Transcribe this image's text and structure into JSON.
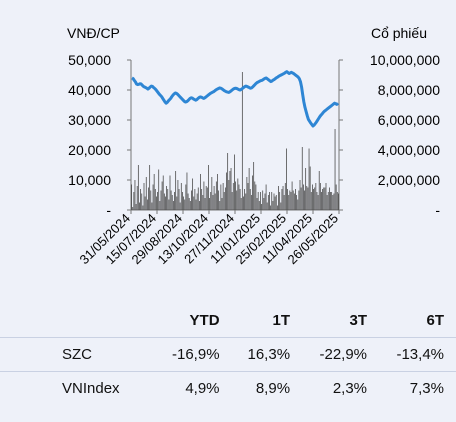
{
  "chart_data": {
    "type": "bar+line",
    "left_axis_title": "VNĐ/CP",
    "right_axis_title": "Cổ phiếu",
    "left_ticks": [
      "-",
      "10,000",
      "20,000",
      "30,000",
      "40,000",
      "50,000"
    ],
    "right_ticks": [
      "-",
      "2,000,000",
      "4,000,000",
      "6,000,000",
      "8,000,000",
      "10,000,000"
    ],
    "x_tick_labels": [
      "31/05/2024",
      "15/07/2024",
      "29/08/2024",
      "13/10/2024",
      "27/11/2024",
      "11/01/2025",
      "25/02/2025",
      "11/04/2025",
      "26/05/2025"
    ],
    "ylim_price": [
      0,
      50000
    ],
    "ylim_volume": [
      0,
      10000000
    ],
    "price_series": [
      44000,
      43800,
      43200,
      42700,
      42000,
      41800,
      41900,
      42100,
      42000,
      41600,
      41200,
      41000,
      40800,
      40600,
      40300,
      40600,
      41000,
      41300,
      41200,
      40800,
      40500,
      40100,
      39600,
      39100,
      38600,
      38200,
      37800,
      37200,
      36600,
      36000,
      35600,
      35900,
      36400,
      36800,
      37200,
      37800,
      38300,
      38700,
      39000,
      38900,
      38600,
      38200,
      37800,
      37400,
      37000,
      36600,
      36200,
      36000,
      36100,
      36400,
      36800,
      37200,
      37400,
      37300,
      37000,
      36800,
      36600,
      36800,
      37200,
      37500,
      37700,
      37600,
      37400,
      37200,
      37400,
      37700,
      38000,
      38300,
      38600,
      38900,
      39100,
      39300,
      39500,
      39800,
      40100,
      40300,
      40500,
      40700,
      40600,
      40400,
      40100,
      39800,
      39600,
      39400,
      39300,
      39200,
      39400,
      39700,
      40000,
      40300,
      40500,
      40600,
      40500,
      40300,
      40100,
      40000,
      40200,
      40500,
      40800,
      41100,
      41300,
      41200,
      41000,
      40800,
      40600,
      40700,
      41000,
      41400,
      41800,
      42200,
      42500,
      42700,
      42900,
      43100,
      43200,
      43400,
      43700,
      43900,
      44000,
      43700,
      43400,
      43100,
      42800,
      43000,
      43300,
      43500,
      43800,
      44100,
      44300,
      44600,
      44800,
      45000,
      45200,
      45400,
      45600,
      45900,
      46100,
      45800,
      45500,
      45700,
      45900,
      45700,
      45500,
      45200,
      44900,
      44600,
      44300,
      43800,
      42800,
      41000,
      38400,
      36000,
      34200,
      32800,
      31400,
      30200,
      29600,
      29000,
      28500,
      28000,
      28300,
      28800,
      29300,
      29900,
      30500,
      31100,
      31600,
      32000,
      32500,
      32900,
      33200,
      33500,
      33800,
      34100,
      34400,
      34700,
      35000,
      35300,
      35600,
      35400,
      35200,
      35600
    ],
    "volume_series": [
      1700000,
      200000,
      1200000,
      2000000,
      400000,
      1600000,
      3000000,
      500000,
      1400000,
      1100000,
      300000,
      1800000,
      900000,
      2200000,
      700000,
      1500000,
      3000000,
      1300000,
      500000,
      1700000,
      2400000,
      1400000,
      900000,
      1200000,
      2700000,
      600000,
      1300000,
      1900000,
      2300000,
      1100000,
      900000,
      1600000,
      1400000,
      700000,
      2300000,
      1300000,
      1000000,
      600000,
      1200000,
      2600000,
      900000,
      2000000,
      1400000,
      500000,
      1800000,
      1200000,
      900000,
      700000,
      1700000,
      2500000,
      1100000,
      800000,
      600000,
      1300000,
      2100000,
      900000,
      1400000,
      700000,
      1100000,
      1500000,
      600000,
      2400000,
      1400000,
      1000000,
      1900000,
      800000,
      1600000,
      1500000,
      3000000,
      800000,
      1200000,
      2200000,
      1000000,
      1600000,
      1100000,
      1900000,
      2400000,
      1300000,
      600000,
      1700000,
      800000,
      1800000,
      1200000,
      1500000,
      2500000,
      3800000,
      2000000,
      2600000,
      2800000,
      1200000,
      1800000,
      3700000,
      1900000,
      1300000,
      2100000,
      1700000,
      1400000,
      800000,
      9200000,
      900000,
      1400000,
      1100000,
      2200000,
      1800000,
      2800000,
      1400000,
      1000000,
      2300000,
      3200000,
      1900000,
      1700000,
      800000,
      1200000,
      600000,
      1200000,
      400000,
      1300000,
      800000,
      1100000,
      1700000,
      500000,
      1000000,
      1200000,
      300000,
      1200000,
      600000,
      1100000,
      900000,
      1000000,
      300000,
      1600000,
      1200000,
      500000,
      1400000,
      1600000,
      1000000,
      1800000,
      4100000,
      1400000,
      1000000,
      1300000,
      1200000,
      1900000,
      1300000,
      1100000,
      1400000,
      1000000,
      700000,
      1300000,
      2000000,
      1500000,
      4200000,
      1700000,
      1300000,
      2800000,
      1600000,
      1500000,
      4100000,
      2900000,
      1200000,
      1700000,
      1400000,
      1500000,
      1800000,
      1200000,
      1000000,
      2600000,
      1800000,
      1200000,
      1400000,
      1500000,
      1500000,
      1800000,
      1000000,
      1200000,
      1500000,
      1200000,
      1200000,
      1000000,
      1100000,
      5400000,
      1700000,
      1200000,
      1100000
    ],
    "bar_color": "#4d4d4d",
    "line_color": "#2e86d4"
  },
  "table": {
    "headers": [
      "YTD",
      "1T",
      "3T",
      "6T"
    ],
    "rows": [
      {
        "name": "SZC",
        "values": [
          "-16,9%",
          "16,3%",
          "-22,9%",
          "-13,4%"
        ]
      },
      {
        "name": "VNIndex",
        "values": [
          "4,9%",
          "8,9%",
          "2,3%",
          "7,3%"
        ]
      }
    ]
  }
}
